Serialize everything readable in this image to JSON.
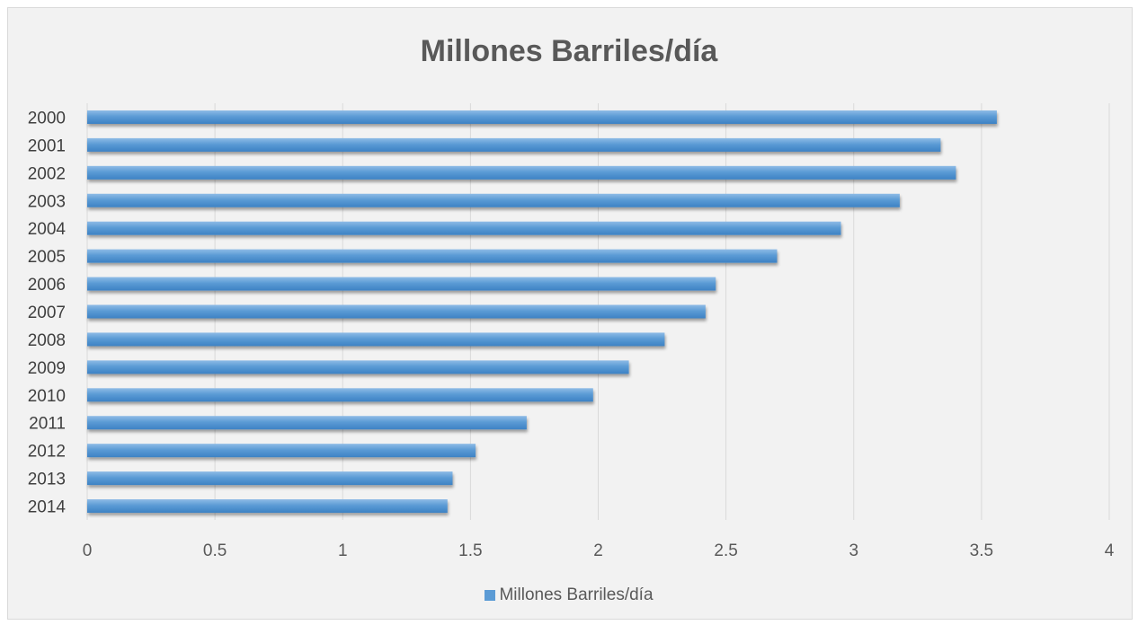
{
  "chart_data": {
    "type": "bar",
    "orientation": "horizontal",
    "title": "Millones Barriles/día",
    "categories": [
      "2000",
      "2001",
      "2002",
      "2003",
      "2004",
      "2005",
      "2006",
      "2007",
      "2008",
      "2009",
      "2010",
      "2011",
      "2012",
      "2013",
      "2014"
    ],
    "series": [
      {
        "name": "Millones Barriles/día",
        "values": [
          3.56,
          3.34,
          3.4,
          3.18,
          2.95,
          2.7,
          2.46,
          2.42,
          2.26,
          2.12,
          1.98,
          1.72,
          1.52,
          1.43,
          1.41
        ],
        "color": "#5b9bd5"
      }
    ],
    "xlim": [
      0,
      4
    ],
    "x_ticks": [
      "0",
      "0.5",
      "1",
      "1.5",
      "2",
      "2.5",
      "3",
      "3.5",
      "4"
    ],
    "grid": true,
    "legend": "bottom"
  }
}
